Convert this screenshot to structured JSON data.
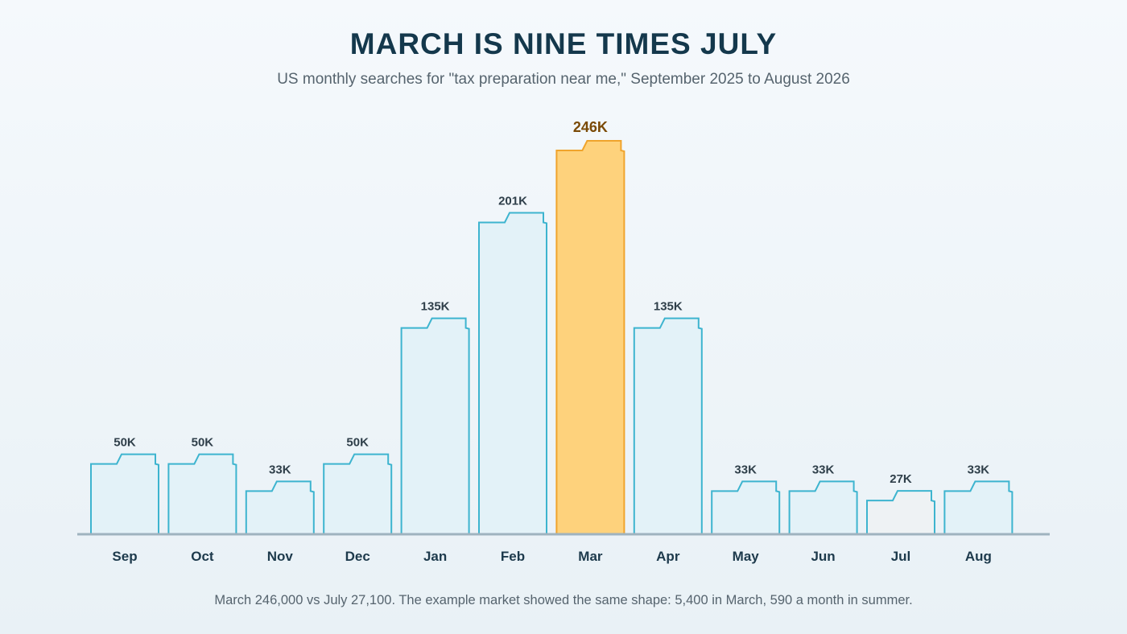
{
  "title": "MARCH IS NINE TIMES JULY",
  "subtitle": "US monthly searches for \"tax preparation near me,\" September 2025 to August 2026",
  "footnote": "March 246,000 vs July 27,100. The example market showed the same shape: 5,400 in March, 590 a month in summer.",
  "colors": {
    "bar_fill": "#e3f2f8",
    "bar_stroke": "#3db4cf",
    "highlight_fill": "#fed27c",
    "highlight_stroke": "#f0a42c",
    "low_fill": "#eef2f4",
    "baseline": "#9fb3bf"
  },
  "chart_data": {
    "type": "bar",
    "categories": [
      "Sep",
      "Oct",
      "Nov",
      "Dec",
      "Jan",
      "Feb",
      "Mar",
      "Apr",
      "May",
      "Jun",
      "Jul",
      "Aug"
    ],
    "values": [
      50000,
      50000,
      33000,
      50000,
      135000,
      201000,
      246000,
      135000,
      33000,
      33000,
      27100,
      33000
    ],
    "value_labels": [
      "50K",
      "50K",
      "33K",
      "50K",
      "135K",
      "201K",
      "246K",
      "135K",
      "33K",
      "33K",
      "27K",
      "33K"
    ],
    "highlight_category": "Mar",
    "low_category": "Jul",
    "ylim": [
      0,
      246000
    ],
    "grid": false,
    "legend": "none"
  }
}
